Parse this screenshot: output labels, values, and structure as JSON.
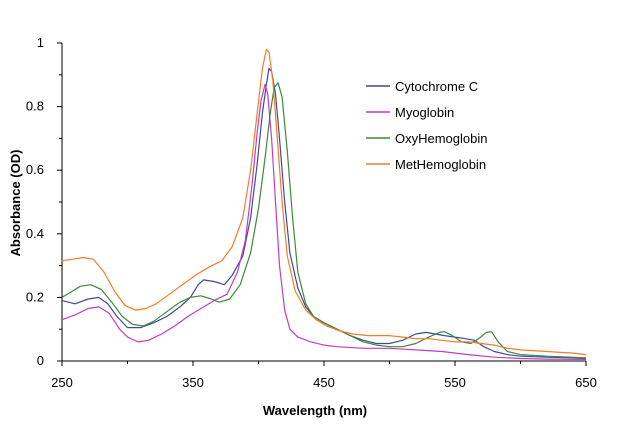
{
  "chart_data": {
    "type": "line",
    "title": "",
    "xlabel": "Wavelength (nm)",
    "ylabel": "Absorbance (OD)",
    "xlim": [
      250,
      650
    ],
    "ylim": [
      0,
      1
    ],
    "x_ticks": [
      250,
      350,
      450,
      550,
      650
    ],
    "x_minor_ticks": [
      300,
      400,
      500,
      600
    ],
    "y_ticks": [
      0,
      0.2,
      0.4,
      0.6,
      0.8,
      1
    ],
    "y_tick_labels": [
      "0",
      "0.2",
      "0.4",
      "0.6",
      "0.8",
      "1"
    ],
    "grid": false,
    "legend_position": "top-right",
    "series": [
      {
        "name": "Cytochrome C",
        "color": "#404a94",
        "points": [
          [
            250,
            0.19
          ],
          [
            260,
            0.18
          ],
          [
            270,
            0.195
          ],
          [
            278,
            0.2
          ],
          [
            285,
            0.18
          ],
          [
            292,
            0.14
          ],
          [
            300,
            0.105
          ],
          [
            310,
            0.105
          ],
          [
            320,
            0.12
          ],
          [
            330,
            0.14
          ],
          [
            340,
            0.17
          ],
          [
            348,
            0.2
          ],
          [
            354,
            0.24
          ],
          [
            358,
            0.255
          ],
          [
            366,
            0.25
          ],
          [
            374,
            0.24
          ],
          [
            380,
            0.27
          ],
          [
            388,
            0.33
          ],
          [
            394,
            0.45
          ],
          [
            399,
            0.62
          ],
          [
            403,
            0.78
          ],
          [
            406,
            0.87
          ],
          [
            408,
            0.92
          ],
          [
            410,
            0.91
          ],
          [
            413,
            0.84
          ],
          [
            416,
            0.7
          ],
          [
            420,
            0.5
          ],
          [
            424,
            0.34
          ],
          [
            430,
            0.23
          ],
          [
            436,
            0.17
          ],
          [
            442,
            0.14
          ],
          [
            450,
            0.12
          ],
          [
            460,
            0.1
          ],
          [
            470,
            0.08
          ],
          [
            480,
            0.065
          ],
          [
            490,
            0.055
          ],
          [
            500,
            0.055
          ],
          [
            510,
            0.065
          ],
          [
            520,
            0.085
          ],
          [
            528,
            0.09
          ],
          [
            535,
            0.085
          ],
          [
            542,
            0.08
          ],
          [
            550,
            0.075
          ],
          [
            558,
            0.07
          ],
          [
            565,
            0.065
          ],
          [
            572,
            0.045
          ],
          [
            580,
            0.03
          ],
          [
            590,
            0.02
          ],
          [
            600,
            0.015
          ],
          [
            620,
            0.012
          ],
          [
            640,
            0.01
          ],
          [
            650,
            0.008
          ]
        ]
      },
      {
        "name": "Myoglobin",
        "color": "#c03cc4",
        "points": [
          [
            250,
            0.13
          ],
          [
            260,
            0.145
          ],
          [
            270,
            0.165
          ],
          [
            278,
            0.17
          ],
          [
            286,
            0.15
          ],
          [
            294,
            0.1
          ],
          [
            300,
            0.075
          ],
          [
            308,
            0.06
          ],
          [
            316,
            0.065
          ],
          [
            326,
            0.085
          ],
          [
            336,
            0.11
          ],
          [
            346,
            0.14
          ],
          [
            356,
            0.165
          ],
          [
            366,
            0.19
          ],
          [
            376,
            0.21
          ],
          [
            384,
            0.28
          ],
          [
            390,
            0.38
          ],
          [
            395,
            0.55
          ],
          [
            399,
            0.72
          ],
          [
            402,
            0.82
          ],
          [
            405,
            0.87
          ],
          [
            407,
            0.84
          ],
          [
            410,
            0.7
          ],
          [
            413,
            0.5
          ],
          [
            416,
            0.3
          ],
          [
            420,
            0.16
          ],
          [
            424,
            0.1
          ],
          [
            430,
            0.075
          ],
          [
            440,
            0.06
          ],
          [
            450,
            0.05
          ],
          [
            460,
            0.045
          ],
          [
            480,
            0.04
          ],
          [
            500,
            0.04
          ],
          [
            520,
            0.035
          ],
          [
            540,
            0.03
          ],
          [
            560,
            0.02
          ],
          [
            580,
            0.012
          ],
          [
            600,
            0.008
          ],
          [
            620,
            0.006
          ],
          [
            650,
            0.005
          ]
        ]
      },
      {
        "name": "OxyHemoglobin",
        "color": "#3a8a3a",
        "points": [
          [
            250,
            0.2
          ],
          [
            256,
            0.215
          ],
          [
            264,
            0.235
          ],
          [
            272,
            0.24
          ],
          [
            280,
            0.225
          ],
          [
            288,
            0.185
          ],
          [
            296,
            0.14
          ],
          [
            304,
            0.115
          ],
          [
            312,
            0.11
          ],
          [
            320,
            0.125
          ],
          [
            330,
            0.155
          ],
          [
            340,
            0.185
          ],
          [
            348,
            0.2
          ],
          [
            356,
            0.205
          ],
          [
            364,
            0.195
          ],
          [
            370,
            0.185
          ],
          [
            378,
            0.195
          ],
          [
            386,
            0.24
          ],
          [
            394,
            0.34
          ],
          [
            400,
            0.48
          ],
          [
            405,
            0.64
          ],
          [
            409,
            0.78
          ],
          [
            412,
            0.86
          ],
          [
            415,
            0.875
          ],
          [
            418,
            0.83
          ],
          [
            422,
            0.66
          ],
          [
            426,
            0.45
          ],
          [
            430,
            0.28
          ],
          [
            436,
            0.18
          ],
          [
            442,
            0.14
          ],
          [
            450,
            0.12
          ],
          [
            460,
            0.1
          ],
          [
            470,
            0.08
          ],
          [
            480,
            0.06
          ],
          [
            490,
            0.05
          ],
          [
            500,
            0.045
          ],
          [
            510,
            0.045
          ],
          [
            520,
            0.055
          ],
          [
            530,
            0.075
          ],
          [
            538,
            0.09
          ],
          [
            542,
            0.092
          ],
          [
            548,
            0.08
          ],
          [
            555,
            0.06
          ],
          [
            562,
            0.055
          ],
          [
            568,
            0.07
          ],
          [
            574,
            0.09
          ],
          [
            578,
            0.092
          ],
          [
            583,
            0.06
          ],
          [
            590,
            0.03
          ],
          [
            600,
            0.02
          ],
          [
            620,
            0.015
          ],
          [
            650,
            0.01
          ]
        ]
      },
      {
        "name": "MetHemoglobin",
        "color": "#f47b2a",
        "points": [
          [
            250,
            0.315
          ],
          [
            258,
            0.32
          ],
          [
            266,
            0.325
          ],
          [
            274,
            0.32
          ],
          [
            282,
            0.28
          ],
          [
            290,
            0.22
          ],
          [
            298,
            0.175
          ],
          [
            306,
            0.16
          ],
          [
            314,
            0.165
          ],
          [
            322,
            0.18
          ],
          [
            332,
            0.21
          ],
          [
            342,
            0.24
          ],
          [
            352,
            0.27
          ],
          [
            362,
            0.295
          ],
          [
            372,
            0.315
          ],
          [
            380,
            0.36
          ],
          [
            388,
            0.45
          ],
          [
            394,
            0.6
          ],
          [
            399,
            0.78
          ],
          [
            403,
            0.92
          ],
          [
            406,
            0.98
          ],
          [
            408,
            0.97
          ],
          [
            411,
            0.88
          ],
          [
            414,
            0.72
          ],
          [
            418,
            0.5
          ],
          [
            422,
            0.33
          ],
          [
            428,
            0.22
          ],
          [
            436,
            0.16
          ],
          [
            444,
            0.13
          ],
          [
            452,
            0.11
          ],
          [
            462,
            0.095
          ],
          [
            472,
            0.085
          ],
          [
            484,
            0.08
          ],
          [
            500,
            0.08
          ],
          [
            510,
            0.075
          ],
          [
            520,
            0.07
          ],
          [
            530,
            0.07
          ],
          [
            540,
            0.065
          ],
          [
            550,
            0.06
          ],
          [
            560,
            0.06
          ],
          [
            570,
            0.055
          ],
          [
            580,
            0.05
          ],
          [
            590,
            0.04
          ],
          [
            600,
            0.035
          ],
          [
            620,
            0.03
          ],
          [
            640,
            0.025
          ],
          [
            650,
            0.02
          ]
        ]
      }
    ]
  }
}
